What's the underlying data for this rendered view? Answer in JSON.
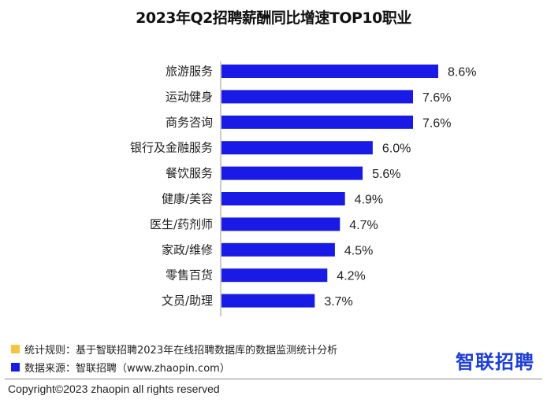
{
  "chart_data": {
    "type": "bar",
    "orientation": "horizontal",
    "title": "2023年Q2招聘薪酬同比增速TOP10职业",
    "categories": [
      "旅游服务",
      "运动健身",
      "商务咨询",
      "银行及金融服务",
      "餐饮服务",
      "健康/美容",
      "医生/药剂师",
      "家政/维修",
      "零售百货",
      "文员/助理"
    ],
    "values": [
      8.6,
      7.6,
      7.6,
      6.0,
      5.6,
      4.9,
      4.7,
      4.5,
      4.2,
      3.7
    ],
    "value_labels": [
      "8.6%",
      "7.6%",
      "7.6%",
      "6.0%",
      "5.6%",
      "4.9%",
      "4.7%",
      "4.5%",
      "4.2%",
      "3.7%"
    ],
    "xlim": [
      0,
      8.6
    ],
    "grid": false,
    "bar_color": "#1a1ae6"
  },
  "legend": {
    "rule": {
      "label": "统计规则：基于智联招聘2023年在线招聘数据库的数据监测统计分析",
      "color": "#f5c542"
    },
    "source": {
      "label": "数据来源：智联招聘（www.zhaopin.com）",
      "color": "#1a1ae6"
    }
  },
  "logo_text": "智联招聘",
  "footer": "Copyright©2023 zhaopin all rights reserved"
}
